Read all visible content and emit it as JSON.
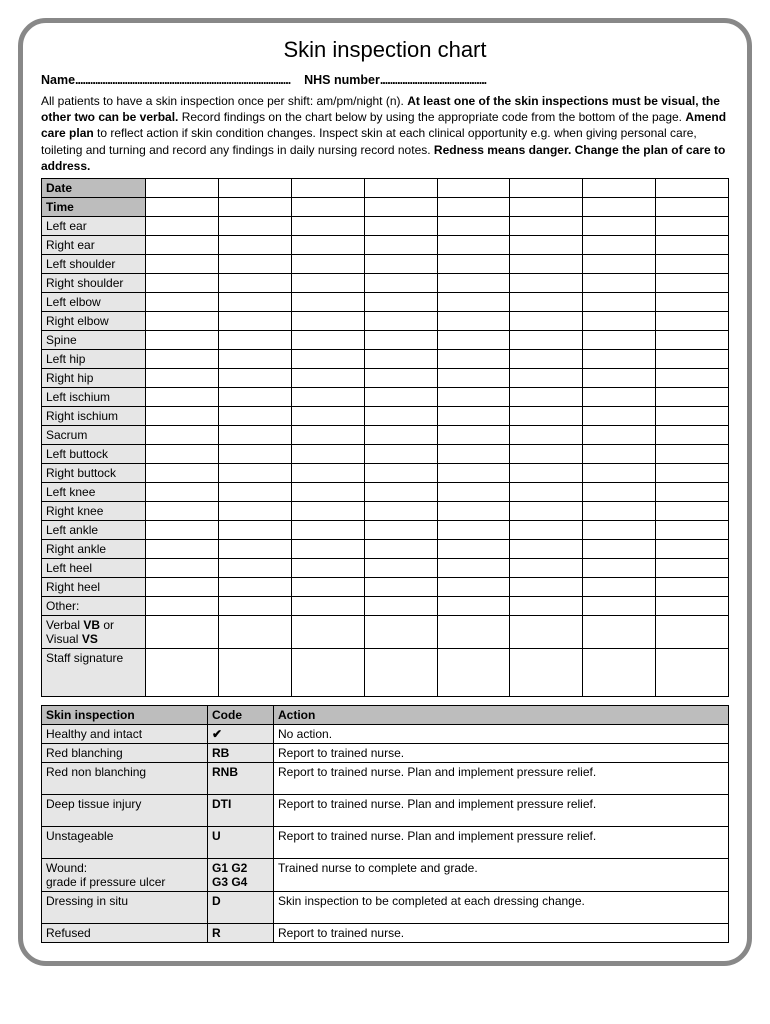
{
  "title": "Skin inspection chart",
  "header": {
    "name_label": "Name",
    "nhs_label": "NHS number",
    "name_dots": ".......................................................................................",
    "nhs_dots": "..........................................."
  },
  "instructions": {
    "line1_a": "All patients to have a skin inspection once per shift: am/pm/night (n). ",
    "line1_b": "At least one of the skin inspections must be visual, the other two can be verbal.",
    "line2_a": " Record findings on the chart below by using the appropriate code from the bottom of the page. ",
    "line2_b": "Amend care plan",
    "line2_c": " to reflect action if skin condition changes. Inspect skin at each clinical opportunity e.g. when giving personal care, toileting and turning and record any findings in daily nursing record notes. ",
    "line2_d": "Redness means danger. Change the plan of care to address."
  },
  "grid": {
    "date_label": "Date",
    "time_label": "Time",
    "rows": [
      "Left ear",
      "Right ear",
      "Left shoulder",
      "Right shoulder",
      "Left elbow",
      "Right elbow",
      "Spine",
      "Left hip",
      "Right hip",
      "Left ischium",
      "Right ischium",
      "Sacrum",
      "Left buttock",
      "Right buttock",
      "Left knee",
      "Right knee",
      "Left ankle",
      "Right ankle",
      "Left heel",
      "Right heel",
      "Other:"
    ],
    "vbvs_a": "Verbal ",
    "vbvs_b": "VB",
    "vbvs_c": " or Visual ",
    "vbvs_d": "VS",
    "sig_label": "Staff signature",
    "num_cols": 8
  },
  "legend": {
    "headers": [
      "Skin inspection",
      "Code",
      "Action"
    ],
    "rows": [
      {
        "name": "Healthy and intact",
        "code": "✔",
        "action": "No action.",
        "tall": false
      },
      {
        "name": "Red blanching",
        "code": "RB",
        "action": "Report to trained nurse.",
        "tall": false
      },
      {
        "name": "Red non blanching",
        "code": "RNB",
        "action": "Report to trained nurse. Plan and implement pressure relief.",
        "tall": true
      },
      {
        "name": "Deep tissue injury",
        "code": "DTI",
        "action": "Report to trained nurse. Plan and implement pressure relief.",
        "tall": true
      },
      {
        "name": "Unstageable",
        "code": "U",
        "action": "Report to trained nurse. Plan and implement pressure relief.",
        "tall": true
      },
      {
        "name": "Wound:\ngrade if pressure ulcer",
        "code": "G1 G2\nG3 G4",
        "action": "Trained nurse to complete and grade.",
        "tall": true
      },
      {
        "name": "Dressing in situ",
        "code": "D",
        "action": "Skin inspection to be completed at each dressing change.",
        "tall": true
      },
      {
        "name": "Refused",
        "code": "R",
        "action": "Report to trained nurse.",
        "tall": false
      }
    ]
  }
}
